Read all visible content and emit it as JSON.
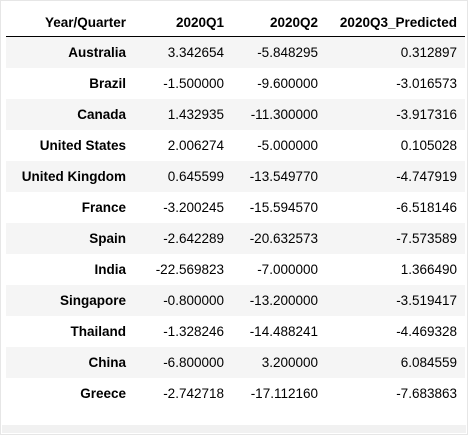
{
  "table": {
    "columns": [
      "Year/Quarter",
      "2020Q1",
      "2020Q2",
      "2020Q3_Predicted"
    ],
    "rows": [
      {
        "index": "Australia",
        "q1": "3.342654",
        "q2": "-5.848295",
        "q3": "0.312897"
      },
      {
        "index": "Brazil",
        "q1": "-1.500000",
        "q2": "-9.600000",
        "q3": "-3.016573"
      },
      {
        "index": "Canada",
        "q1": "1.432935",
        "q2": "-11.300000",
        "q3": "-3.917316"
      },
      {
        "index": "United States",
        "q1": "2.006274",
        "q2": "-5.000000",
        "q3": "0.105028"
      },
      {
        "index": "United Kingdom",
        "q1": "0.645599",
        "q2": "-13.549770",
        "q3": "-4.747919"
      },
      {
        "index": "France",
        "q1": "-3.200245",
        "q2": "-15.594570",
        "q3": "-6.518146"
      },
      {
        "index": "Spain",
        "q1": "-2.642289",
        "q2": "-20.632573",
        "q3": "-7.573589"
      },
      {
        "index": "India",
        "q1": "-22.569823",
        "q2": "-7.000000",
        "q3": "1.366490"
      },
      {
        "index": "Singapore",
        "q1": "-0.800000",
        "q2": "-13.200000",
        "q3": "-3.519417"
      },
      {
        "index": "Thailand",
        "q1": "-1.328246",
        "q2": "-14.488241",
        "q3": "-4.469328"
      },
      {
        "index": "China",
        "q1": "-6.800000",
        "q2": "3.200000",
        "q3": "6.084559"
      },
      {
        "index": "Greece",
        "q1": "-2.742718",
        "q2": "-17.112160",
        "q3": "-7.683863"
      }
    ]
  },
  "colors": {
    "stripe": "#f5f5f5",
    "header_rule": "#000000",
    "frame_border": "#e6e6e6"
  }
}
